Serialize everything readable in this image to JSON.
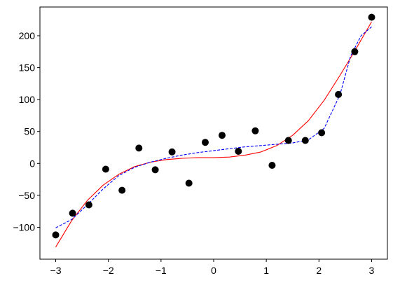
{
  "chart_data": {
    "type": "scatter",
    "title": "",
    "xlabel": "",
    "ylabel": "",
    "xlim": [
      -3.3,
      3.3
    ],
    "ylim": [
      -150,
      245
    ],
    "grid": false,
    "xticks": [
      -3,
      -2,
      -1,
      0,
      1,
      2,
      3
    ],
    "yticks": [
      -100,
      -50,
      0,
      50,
      100,
      150,
      200
    ],
    "tick_labels_x": [
      "−3",
      "−2",
      "−1",
      "0",
      "1",
      "2",
      "3"
    ],
    "tick_labels_y": [
      "−100",
      "−50",
      "0",
      "50",
      "100",
      "150",
      "200"
    ],
    "series": [
      {
        "kind": "scatter",
        "color": "#000000",
        "x": [
          -3.0,
          -2.68,
          -2.37,
          -2.05,
          -1.74,
          -1.42,
          -1.11,
          -0.79,
          -0.47,
          -0.16,
          0.16,
          0.47,
          0.79,
          1.11,
          1.42,
          1.74,
          2.05,
          2.37,
          2.68,
          3.0
        ],
        "y": [
          -112,
          -78,
          -65,
          -9,
          -42,
          24,
          -10,
          18,
          -31,
          33,
          44,
          19,
          51,
          -3,
          36,
          36,
          48,
          108,
          175,
          229
        ]
      },
      {
        "kind": "line",
        "style": "solid",
        "color": "#ff0000",
        "x": [
          -3.0,
          -2.7,
          -2.4,
          -2.1,
          -1.8,
          -1.5,
          -1.2,
          -0.9,
          -0.6,
          -0.3,
          0.0,
          0.3,
          0.6,
          0.9,
          1.2,
          1.5,
          1.8,
          2.1,
          2.4,
          2.7,
          3.0
        ],
        "y": [
          -131,
          -90,
          -58,
          -34,
          -17,
          -5,
          2,
          6,
          8,
          9,
          9,
          10,
          13,
          18,
          28,
          44,
          67,
          99,
          138,
          179,
          222
        ]
      },
      {
        "kind": "line",
        "style": "dashed",
        "color": "#0000ff",
        "x": [
          -3.0,
          -2.7,
          -2.4,
          -2.1,
          -1.8,
          -1.5,
          -1.2,
          -0.9,
          -0.6,
          -0.3,
          0.0,
          0.3,
          0.6,
          0.9,
          1.2,
          1.5,
          1.8,
          2.1,
          2.4,
          2.6,
          2.8,
          3.0
        ],
        "y": [
          -101,
          -88,
          -65,
          -40,
          -19,
          -6,
          2,
          8,
          13,
          17,
          20,
          23,
          26,
          28,
          30,
          32,
          37,
          55,
          108,
          168,
          200,
          214
        ]
      }
    ]
  }
}
